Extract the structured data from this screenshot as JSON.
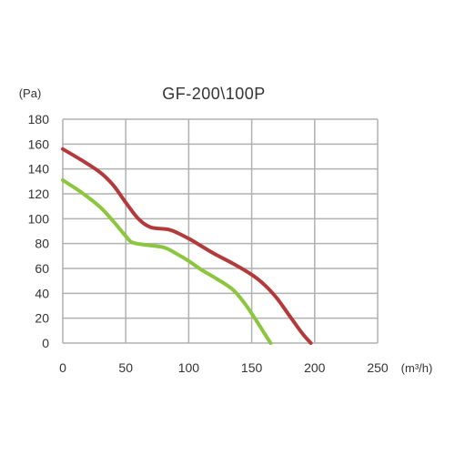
{
  "chart_data": {
    "type": "line",
    "title": "GF-200\\100P",
    "ylabel": "(Pa)",
    "xlabel": "(m³/h)",
    "xlim": [
      0,
      250
    ],
    "ylim": [
      0,
      180
    ],
    "x_ticks": [
      "0",
      "50",
      "100",
      "150",
      "200",
      "250"
    ],
    "y_ticks": [
      "0",
      "20",
      "40",
      "60",
      "80",
      "100",
      "120",
      "140",
      "160",
      "180"
    ],
    "grid": true,
    "series": [
      {
        "color": "#b33a3a",
        "x": [
          0,
          15,
          30,
          40,
          50,
          60,
          70,
          85,
          100,
          110,
          120,
          135,
          150,
          160,
          170,
          180,
          190,
          197
        ],
        "y": [
          156,
          147,
          137,
          127,
          113,
          100,
          93,
          91,
          84,
          78,
          72,
          64,
          55,
          47,
          36,
          22,
          8,
          0
        ]
      },
      {
        "color": "#8cc63f",
        "x": [
          0,
          15,
          30,
          40,
          50,
          55,
          65,
          80,
          90,
          100,
          110,
          120,
          135,
          145,
          155,
          160,
          165
        ],
        "y": [
          131,
          121,
          109,
          98,
          86,
          81,
          79,
          77,
          72,
          66,
          59,
          53,
          43,
          31,
          16,
          8,
          0
        ]
      }
    ]
  }
}
